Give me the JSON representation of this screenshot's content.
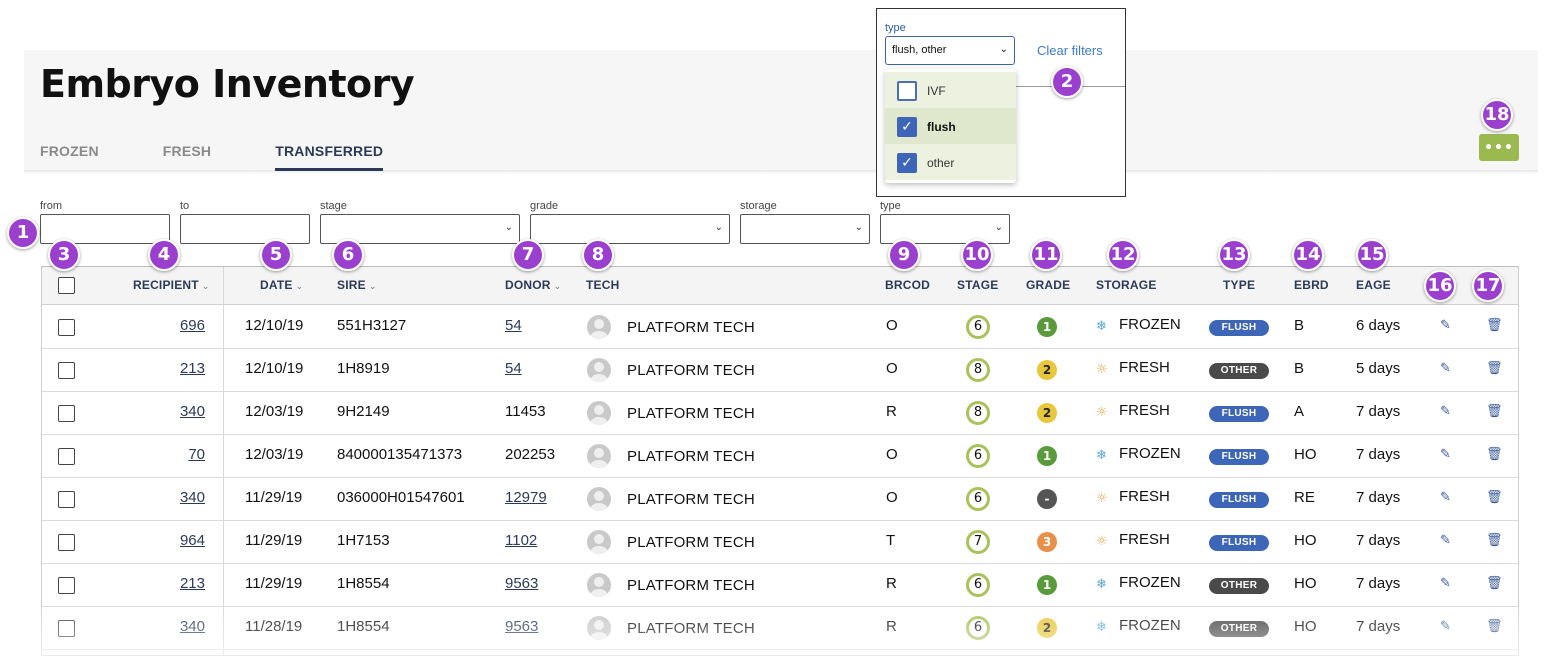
{
  "page": {
    "title": "Embryo Inventory"
  },
  "tabs": [
    {
      "label": "FROZEN",
      "active": false
    },
    {
      "label": "FRESH",
      "active": false
    },
    {
      "label": "TRANSFERRED",
      "active": true
    }
  ],
  "more_button": {
    "label": "•••"
  },
  "filters": [
    {
      "name": "from",
      "label": "from",
      "value": "",
      "dropdown": false
    },
    {
      "name": "to",
      "label": "to",
      "value": "",
      "dropdown": false
    },
    {
      "name": "stage",
      "label": "stage",
      "value": "",
      "dropdown": true
    },
    {
      "name": "grade",
      "label": "grade",
      "value": "",
      "dropdown": true
    },
    {
      "name": "storage",
      "label": "storage",
      "value": "",
      "dropdown": true
    },
    {
      "name": "type",
      "label": "type",
      "value": "",
      "dropdown": true
    }
  ],
  "type_dropdown": {
    "label": "type",
    "selected_value": "flush, other",
    "clear_label": "Clear filters",
    "options": [
      {
        "label": "IVF",
        "checked": false
      },
      {
        "label": "flush",
        "checked": true
      },
      {
        "label": "other",
        "checked": true
      }
    ]
  },
  "table": {
    "columns": {
      "recipient": "RECIPIENT",
      "date": "DATE",
      "sire": "SIRE",
      "donor": "DONOR",
      "tech": "TECH",
      "brcod": "BRCOD",
      "stage": "STAGE",
      "grade": "GRADE",
      "storage": "STORAGE",
      "type": "TYPE",
      "ebrd": "EBRD",
      "eage": "EAGE"
    },
    "rows": [
      {
        "recipient": "696",
        "date": "12/10/19",
        "sire": "551H3127",
        "donor": "54",
        "donor_link": true,
        "tech": "PLATFORM TECH",
        "brcod": "O",
        "stage": "6",
        "grade": "1",
        "grade_color": "#5b9a3c",
        "storage": "FROZEN",
        "storage_icon": "snowflake-icon",
        "type": "FLUSH",
        "type_color": "#3e66b8",
        "ebrd": "B",
        "eage": "6 days"
      },
      {
        "recipient": "213",
        "date": "12/10/19",
        "sire": "1H8919",
        "donor": "54",
        "donor_link": true,
        "tech": "PLATFORM TECH",
        "brcod": "O",
        "stage": "8",
        "grade": "2",
        "grade_color": "#e8c73a",
        "storage": "FRESH",
        "storage_icon": "sun-icon",
        "type": "OTHER",
        "type_color": "#4a4a4a",
        "ebrd": "B",
        "eage": "5 days"
      },
      {
        "recipient": "340",
        "date": "12/03/19",
        "sire": "9H2149",
        "donor": "11453",
        "donor_link": false,
        "tech": "PLATFORM TECH",
        "brcod": "R",
        "stage": "8",
        "grade": "2",
        "grade_color": "#e8c73a",
        "storage": "FRESH",
        "storage_icon": "sun-icon",
        "type": "FLUSH",
        "type_color": "#3e66b8",
        "ebrd": "A",
        "eage": "7 days"
      },
      {
        "recipient": "70",
        "date": "12/03/19",
        "sire": "840000135471373",
        "donor": "202253",
        "donor_link": false,
        "tech": "PLATFORM TECH",
        "brcod": "O",
        "stage": "6",
        "grade": "1",
        "grade_color": "#5b9a3c",
        "storage": "FROZEN",
        "storage_icon": "snowflake-icon",
        "type": "FLUSH",
        "type_color": "#3e66b8",
        "ebrd": "HO",
        "eage": "7 days"
      },
      {
        "recipient": "340",
        "date": "11/29/19",
        "sire": "036000H01547601",
        "donor": "12979",
        "donor_link": true,
        "tech": "PLATFORM TECH",
        "brcod": "O",
        "stage": "6",
        "grade": "-",
        "grade_color": "#555555",
        "storage": "FRESH",
        "storage_icon": "sun-icon",
        "type": "FLUSH",
        "type_color": "#3e66b8",
        "ebrd": "RE",
        "eage": "7 days"
      },
      {
        "recipient": "964",
        "date": "11/29/19",
        "sire": "1H7153",
        "donor": "1102",
        "donor_link": true,
        "tech": "PLATFORM TECH",
        "brcod": "T",
        "stage": "7",
        "grade": "3",
        "grade_color": "#e8904a",
        "storage": "FRESH",
        "storage_icon": "sun-icon",
        "type": "FLUSH",
        "type_color": "#3e66b8",
        "ebrd": "HO",
        "eage": "7 days"
      },
      {
        "recipient": "213",
        "date": "11/29/19",
        "sire": "1H8554",
        "donor": "9563",
        "donor_link": true,
        "tech": "PLATFORM TECH",
        "brcod": "R",
        "stage": "6",
        "grade": "1",
        "grade_color": "#5b9a3c",
        "storage": "FROZEN",
        "storage_icon": "snowflake-icon",
        "type": "OTHER",
        "type_color": "#4a4a4a",
        "ebrd": "HO",
        "eage": "7 days"
      },
      {
        "recipient": "340",
        "date": "11/28/19",
        "sire": "1H8554",
        "donor": "9563",
        "donor_link": true,
        "tech": "PLATFORM TECH",
        "brcod": "R",
        "stage": "6",
        "grade": "2",
        "grade_color": "#e8c73a",
        "storage": "FROZEN",
        "storage_icon": "snowflake-icon",
        "type": "OTHER",
        "type_color": "#4a4a4a",
        "ebrd": "HO",
        "eage": "7 days"
      }
    ]
  },
  "callouts": [
    "1",
    "2",
    "3",
    "4",
    "5",
    "6",
    "7",
    "8",
    "9",
    "10",
    "11",
    "12",
    "13",
    "14",
    "15",
    "16",
    "17",
    "18"
  ],
  "colors": {
    "accent_green": "#9ab94f",
    "nav_blue": "#2b3a57",
    "link_blue": "#3a7ac8",
    "callout_purple": "#9b3fcf"
  }
}
